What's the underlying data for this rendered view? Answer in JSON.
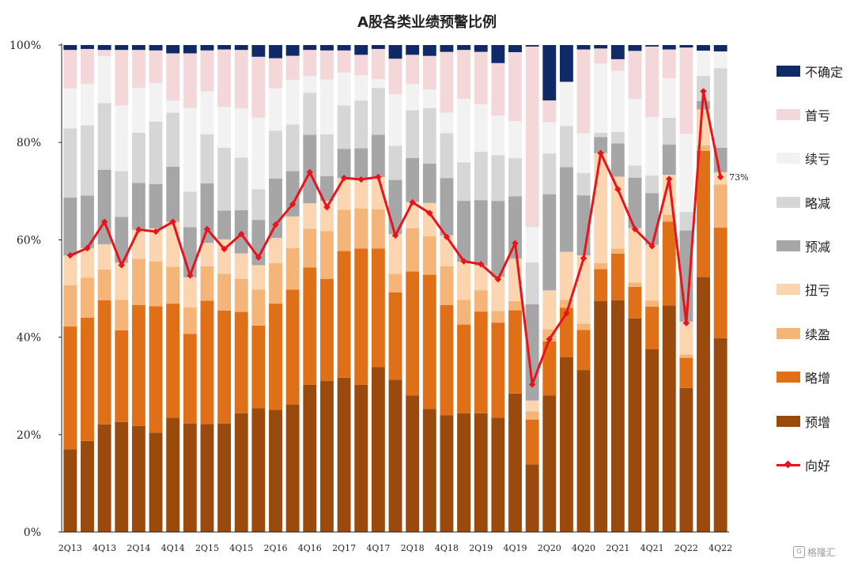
{
  "chart_data": {
    "type": "bar",
    "title": "A股各类业绩预警比例",
    "xlabel": "",
    "ylabel": "",
    "ylim": [
      0,
      100
    ],
    "yticks": [
      "0%",
      "20%",
      "40%",
      "60%",
      "80%",
      "100%"
    ],
    "stacked": true,
    "categories": [
      "2Q13",
      "3Q13",
      "4Q13",
      "1Q14",
      "2Q14",
      "3Q14",
      "4Q14",
      "1Q15",
      "2Q15",
      "3Q15",
      "4Q15",
      "1Q16",
      "2Q16",
      "3Q16",
      "4Q16",
      "1Q17",
      "2Q17",
      "3Q17",
      "4Q17",
      "1Q18",
      "2Q18",
      "3Q18",
      "4Q18",
      "1Q19",
      "2Q19",
      "3Q19",
      "4Q19",
      "1Q20",
      "2Q20",
      "3Q20",
      "4Q20",
      "1Q21",
      "2Q21",
      "3Q21",
      "4Q21",
      "1Q22",
      "2Q22",
      "3Q22",
      "4Q22"
    ],
    "xticklabels": [
      "2Q13",
      "",
      "4Q13",
      "",
      "2Q14",
      "",
      "4Q14",
      "",
      "2Q15",
      "",
      "4Q15",
      "",
      "2Q16",
      "",
      "4Q16",
      "",
      "2Q17",
      "",
      "4Q17",
      "",
      "2Q18",
      "",
      "4Q18",
      "",
      "2Q19",
      "",
      "4Q19",
      "",
      "2Q20",
      "",
      "4Q20",
      "",
      "2Q21",
      "",
      "4Q21",
      "",
      "2Q22",
      "",
      "4Q22"
    ],
    "series": [
      {
        "name": "预增",
        "color": "#9a4a0c",
        "values": [
          17,
          18.7,
          22.1,
          22.6,
          21.8,
          20.4,
          23.5,
          22.3,
          22.2,
          22.3,
          24.4,
          25.4,
          25.1,
          26.2,
          30.2,
          31,
          31.7,
          30.2,
          33.9,
          31.3,
          28,
          25,
          24,
          24.4,
          24.5,
          23.5,
          27.3,
          13.9,
          22.4,
          28.1,
          33.2,
          47.4,
          46,
          44,
          37.5,
          46.5,
          29.5,
          54.7,
          39.5
        ]
      },
      {
        "name": "略增",
        "color": "#e07018",
        "values": [
          25.2,
          25.3,
          25.5,
          18.8,
          24.8,
          25.9,
          23.4,
          18.4,
          25.3,
          23.2,
          20.8,
          17,
          21.8,
          23.6,
          24.1,
          21,
          26,
          28,
          24.3,
          17.9,
          25.5,
          27.3,
          22.6,
          18.2,
          21,
          19.5,
          16.4,
          9.2,
          8.9,
          7.9,
          8.2,
          6.6,
          9.2,
          6.5,
          8.8,
          17.2,
          6.2,
          27,
          22.5
        ]
      },
      {
        "name": "续盈",
        "color": "#f5b478",
        "values": [
          8.5,
          8.2,
          6.3,
          6.3,
          9.5,
          9.2,
          7.6,
          5.4,
          7.1,
          7.5,
          6.8,
          7.4,
          8.3,
          8.5,
          8,
          9.8,
          8.5,
          8.3,
          8.1,
          3.8,
          8.9,
          7.8,
          8,
          5.1,
          4.4,
          2.4,
          1.8,
          1.7,
          2,
          1.3,
          1.3,
          1.2,
          1,
          0.9,
          1.2,
          1.4,
          0.7,
          1.2,
          8.8
        ]
      },
      {
        "name": "扭亏",
        "color": "#fad5b0",
        "values": [
          6.1,
          6.1,
          5.2,
          7.6,
          6,
          6.8,
          9.2,
          6.2,
          4.8,
          7.1,
          5.2,
          5,
          5.2,
          6.5,
          5.2,
          6.2,
          6.5,
          6,
          6.6,
          8.2,
          5.4,
          6.8,
          6.3,
          7.8,
          5.1,
          7,
          8.4,
          2.2,
          6.4,
          7.7,
          14,
          22.6,
          14.3,
          11.2,
          11.5,
          8.2,
          6.7,
          7.7,
          2.5
        ]
      },
      {
        "name": "预减",
        "color": "#a6a6a6",
        "values": [
          11.9,
          10.8,
          15.3,
          9.4,
          9.6,
          9.1,
          11.3,
          10.3,
          12.2,
          5.9,
          8.9,
          9.3,
          12.2,
          9.3,
          14.1,
          5.1,
          6,
          6.3,
          8.7,
          11.1,
          9,
          8,
          11.8,
          12.5,
          13.5,
          15.6,
          12.3,
          19.8,
          15.8,
          13.6,
          12.3,
          3.3,
          6.6,
          10.4,
          10.6,
          6.2,
          18.7,
          1.8,
          5
        ]
      },
      {
        "name": "略减",
        "color": "#d6d6d6",
        "values": [
          14.2,
          14.4,
          13.7,
          9.4,
          10.3,
          12.8,
          11.1,
          7.3,
          10.1,
          12.9,
          10.8,
          6.3,
          9.8,
          9.6,
          8.6,
          8.6,
          8.9,
          9.8,
          9.6,
          7,
          9.8,
          11.3,
          9.2,
          7.9,
          10,
          9.4,
          7.5,
          8.6,
          6.7,
          6.6,
          4.6,
          0.9,
          2.3,
          2.5,
          3.6,
          5.5,
          3.8,
          5.4,
          16.2
        ]
      },
      {
        "name": "续亏",
        "color": "#f2f2f2",
        "values": [
          8.2,
          8.5,
          9.6,
          13.5,
          9.2,
          7.9,
          2.5,
          17.2,
          8.8,
          8.4,
          10.1,
          14.7,
          8.7,
          9.1,
          3.4,
          11.2,
          6.7,
          5.2,
          1.8,
          10.6,
          5.4,
          3.8,
          4.2,
          13.1,
          9.8,
          8.1,
          7.3,
          7.2,
          5.1,
          7.1,
          8.1,
          14.2,
          12.1,
          13.7,
          12,
          8.1,
          16,
          5.4,
          3.4
        ]
      },
      {
        "name": "首亏",
        "color": "#f4d7d9",
        "values": [
          7.9,
          7.2,
          1.3,
          11.4,
          7.8,
          6.7,
          9.7,
          11.2,
          8.4,
          11.8,
          12,
          12.5,
          6.2,
          5,
          5.4,
          6,
          4.6,
          4.2,
          6.2,
          7.3,
          6,
          6.8,
          12.5,
          10,
          10.8,
          10.8,
          13.6,
          37.1,
          3.6,
          0,
          17.2,
          3.1,
          2.3,
          9.9,
          14.5,
          5.9,
          17.7,
          0,
          0
        ]
      },
      {
        "name": "不确定",
        "color": "#0f2a66",
        "values": [
          1,
          0.8,
          1,
          1,
          1,
          1.1,
          1.7,
          1.7,
          1.1,
          0.9,
          1,
          2.4,
          2.7,
          2.2,
          1,
          1.1,
          1.1,
          2,
          0.8,
          2.8,
          2,
          2.2,
          1.4,
          1,
          1.4,
          3.7,
          1.4,
          0.3,
          9.1,
          5.9,
          0.9,
          0.7,
          2.8,
          1.2,
          0.3,
          0.9,
          0.5,
          1.2,
          1.3
        ]
      }
    ],
    "line": {
      "name": "向好",
      "color": "#e8141c",
      "values": [
        56.8,
        58.3,
        63.7,
        54.8,
        62.1,
        61.7,
        63.7,
        52.7,
        62.2,
        58.1,
        61.2,
        56.4,
        63.1,
        67.3,
        73.9,
        66.7,
        72.7,
        72.4,
        72.9,
        60.9,
        67.7,
        65.5,
        60.6,
        55.6,
        55,
        51.9,
        59.3,
        30.3,
        39.6,
        44.9,
        56.2,
        77.8,
        70.4,
        62.2,
        58.7,
        72.5,
        42.9,
        90.5,
        72.9
      ]
    },
    "annotation": "73%",
    "legend_position": "right"
  },
  "watermark": {
    "icon": "G",
    "text": "格隆汇"
  }
}
